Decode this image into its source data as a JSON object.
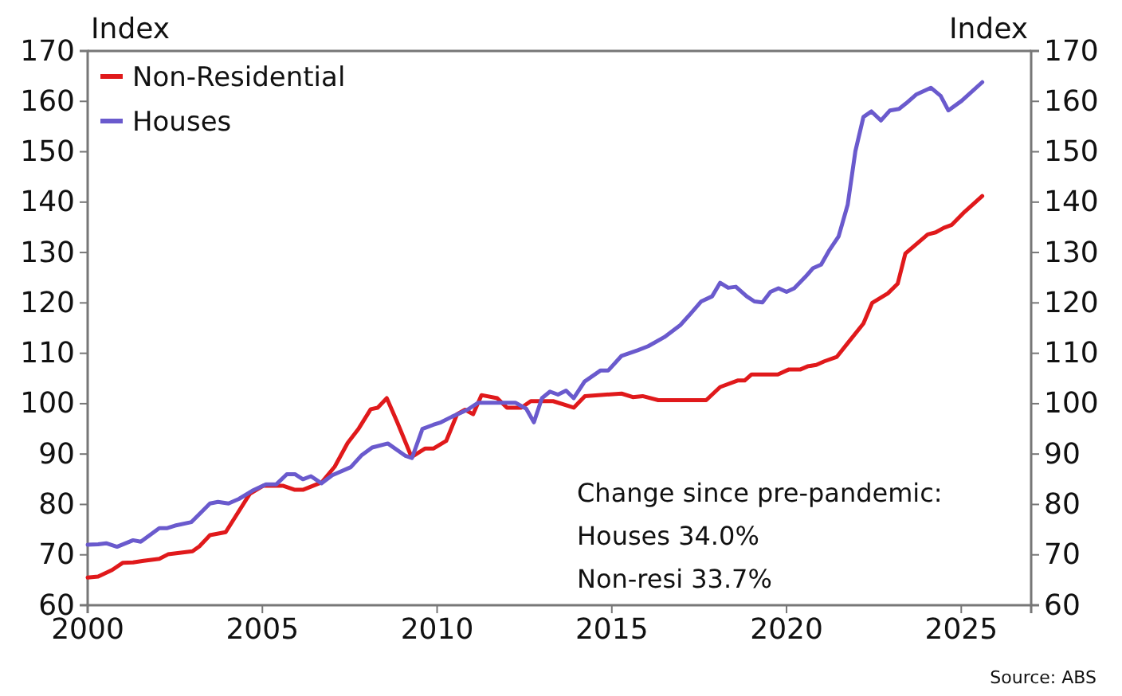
{
  "chart_data": {
    "type": "line",
    "ylabel": "Index",
    "y2label": "Index",
    "xlim": [
      2000,
      2027
    ],
    "xticks": [
      2000,
      2005,
      2010,
      2015,
      2020,
      2025
    ],
    "ylim": [
      60,
      170
    ],
    "yticks": [
      60,
      70,
      80,
      90,
      100,
      110,
      120,
      130,
      140,
      150,
      160,
      170
    ],
    "y2lim": [
      60,
      170
    ],
    "y2ticks": [
      60,
      70,
      80,
      90,
      100,
      110,
      120,
      130,
      140,
      150,
      160,
      170
    ],
    "legend": "top left",
    "grid": false,
    "line_style": "solid",
    "marker": "none",
    "annotations": [
      "Change since pre-pandemic:",
      "Houses 34.0%",
      "Non-resi 33.7%",
      "Source: ABS"
    ],
    "series": [
      {
        "name": "Non-Residential",
        "color": "#e0191b",
        "x": [
          2000.0,
          2000.3,
          2000.7,
          2001.0,
          2001.3,
          2001.6,
          2002.05,
          2002.3,
          2003.0,
          2003.2,
          2003.5,
          2003.95,
          2004.64,
          2005.02,
          2005.32,
          2005.6,
          2005.93,
          2006.16,
          2006.7,
          2007.07,
          2007.44,
          2007.76,
          2008.1,
          2008.3,
          2008.56,
          2008.86,
          2009.27,
          2009.66,
          2009.9,
          2010.26,
          2010.57,
          2010.8,
          2011.03,
          2011.27,
          2011.72,
          2012.0,
          2012.41,
          2012.68,
          2013.32,
          2013.91,
          2014.23,
          2015.28,
          2015.6,
          2015.88,
          2016.33,
          2017.7,
          2018.1,
          2018.6,
          2018.8,
          2019.0,
          2019.75,
          2020.07,
          2020.4,
          2020.6,
          2020.85,
          2021.08,
          2021.44,
          2021.76,
          2022.2,
          2022.45,
          2022.9,
          2023.18,
          2023.4,
          2023.72,
          2024.04,
          2024.27,
          2024.5,
          2024.73,
          2025.1,
          2025.6
        ],
        "values": [
          65.5,
          65.7,
          67.0,
          68.4,
          68.5,
          68.8,
          69.2,
          70.1,
          70.7,
          71.7,
          73.9,
          74.5,
          82.1,
          83.7,
          83.7,
          83.7,
          82.9,
          82.9,
          84.4,
          87.5,
          92.2,
          95.1,
          98.9,
          99.2,
          101.1,
          96.3,
          89.4,
          91.1,
          91.1,
          92.6,
          97.9,
          98.8,
          97.9,
          101.7,
          101.1,
          99.2,
          99.2,
          100.5,
          100.5,
          99.2,
          101.5,
          102.0,
          101.3,
          101.5,
          100.7,
          100.7,
          103.3,
          104.6,
          104.6,
          105.8,
          105.8,
          106.8,
          106.8,
          107.4,
          107.7,
          108.4,
          109.3,
          112.1,
          115.9,
          120.0,
          121.9,
          123.8,
          129.8,
          131.7,
          133.6,
          134.0,
          134.9,
          135.5,
          138.1,
          141.2
        ]
      },
      {
        "name": "Houses",
        "color": "#6a5acd",
        "x": [
          2000.0,
          2000.3,
          2000.53,
          2000.84,
          2001.3,
          2001.52,
          2002.05,
          2002.28,
          2002.5,
          2002.97,
          2003.5,
          2003.73,
          2004.03,
          2004.33,
          2004.71,
          2005.1,
          2005.4,
          2005.7,
          2005.93,
          2006.16,
          2006.39,
          2006.69,
          2007.0,
          2007.53,
          2007.83,
          2008.14,
          2008.59,
          2009.08,
          2009.28,
          2009.58,
          2009.89,
          2010.11,
          2010.42,
          2010.87,
          2011.18,
          2011.48,
          2012.24,
          2012.55,
          2012.77,
          2013.0,
          2013.23,
          2013.46,
          2013.69,
          2013.91,
          2014.22,
          2014.68,
          2014.9,
          2015.28,
          2015.74,
          2016.04,
          2016.5,
          2016.96,
          2017.26,
          2017.56,
          2017.87,
          2018.1,
          2018.33,
          2018.55,
          2018.86,
          2019.08,
          2019.31,
          2019.54,
          2019.77,
          2020.0,
          2020.22,
          2020.53,
          2020.76,
          2020.99,
          2021.21,
          2021.49,
          2021.75,
          2021.97,
          2022.2,
          2022.43,
          2022.7,
          2022.96,
          2023.22,
          2023.42,
          2023.72,
          2024.13,
          2024.41,
          2024.63,
          2025.01,
          2025.6
        ],
        "values": [
          72.0,
          72.1,
          72.3,
          71.6,
          72.9,
          72.6,
          75.3,
          75.3,
          75.8,
          76.5,
          80.2,
          80.5,
          80.2,
          81.1,
          82.7,
          84.0,
          84.0,
          86.0,
          86.0,
          85.0,
          85.6,
          84.2,
          85.8,
          87.4,
          89.7,
          91.3,
          92.1,
          89.7,
          89.2,
          95.0,
          95.8,
          96.3,
          97.4,
          98.8,
          100.2,
          100.2,
          100.2,
          99.0,
          96.3,
          101.1,
          102.4,
          101.8,
          102.6,
          101.1,
          104.4,
          106.6,
          106.6,
          109.5,
          110.6,
          111.4,
          113.2,
          115.6,
          117.9,
          120.3,
          121.3,
          124.0,
          123.0,
          123.2,
          121.3,
          120.3,
          120.1,
          122.2,
          122.9,
          122.2,
          122.9,
          125.1,
          126.9,
          127.6,
          130.3,
          133.2,
          139.5,
          150.1,
          156.9,
          158.0,
          156.2,
          158.2,
          158.5,
          159.6,
          161.4,
          162.7,
          161.1,
          158.2,
          160.1,
          163.8
        ]
      }
    ]
  }
}
